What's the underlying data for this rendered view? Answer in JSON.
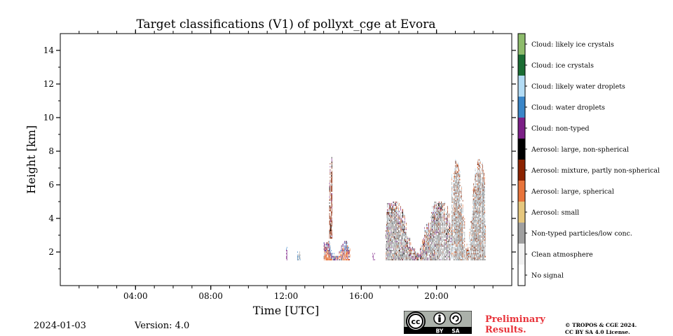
{
  "chart_data": {
    "type": "heatmap",
    "title": "Target classifications (V1) of pollyxt_cge at Evora",
    "xlabel": "Time [UTC]",
    "ylabel": "Height [km]",
    "xlim_hours": [
      0,
      24
    ],
    "ylim_km": [
      0,
      15
    ],
    "x_ticks": [
      {
        "hour": 4,
        "label": "04:00"
      },
      {
        "hour": 8,
        "label": "08:00"
      },
      {
        "hour": 12,
        "label": "12:00"
      },
      {
        "hour": 16,
        "label": "16:00"
      },
      {
        "hour": 20,
        "label": "20:00"
      }
    ],
    "y_ticks": [
      {
        "km": 2,
        "label": "2"
      },
      {
        "km": 4,
        "label": "4"
      },
      {
        "km": 6,
        "label": "6"
      },
      {
        "km": 8,
        "label": "8"
      },
      {
        "km": 10,
        "label": "10"
      },
      {
        "km": 12,
        "label": "12"
      },
      {
        "km": 14,
        "label": "14"
      }
    ],
    "classes": [
      {
        "label": "No signal",
        "color": "#ffffff"
      },
      {
        "label": "Clean atmosphere",
        "color": "#f2f2f2"
      },
      {
        "label": "Non-typed particles/low conc.",
        "color": "#a0a0a0"
      },
      {
        "label": "Aerosol: small",
        "color": "#e6c77e"
      },
      {
        "label": "Aerosol: large, spherical",
        "color": "#e8743b"
      },
      {
        "label": "Aerosol: mixture, partly non-spherical",
        "color": "#8b2200"
      },
      {
        "label": "Aerosol: large, non-spherical",
        "color": "#000000"
      },
      {
        "label": "Cloud: non-typed",
        "color": "#7b1f86"
      },
      {
        "label": "Cloud: water droplets",
        "color": "#3a86c8"
      },
      {
        "label": "Cloud: likely water droplets",
        "color": "#b3dcf5"
      },
      {
        "label": "Cloud: ice crystals",
        "color": "#1b6d33"
      },
      {
        "label": "Cloud: likely ice crystals",
        "color": "#8dbb6b"
      }
    ],
    "data_regions": [
      {
        "t_start": 12.0,
        "t_end": 12.05,
        "h_min": 1.5,
        "h_max": 2.6,
        "dominant": [
          "Cloud: non-typed",
          "Cloud: water droplets"
        ]
      },
      {
        "t_start": 12.6,
        "t_end": 12.75,
        "h_min": 1.5,
        "h_max": 2.0,
        "dominant": [
          "Cloud: water droplets",
          "Non-typed particles/low conc."
        ]
      },
      {
        "t_start": 14.0,
        "t_end": 15.4,
        "h_min": 1.5,
        "h_max": 2.6,
        "dominant": [
          "Aerosol: large, spherical",
          "Cloud: water droplets",
          "Cloud: non-typed"
        ]
      },
      {
        "t_start": 14.3,
        "t_end": 14.45,
        "h_min": 2.8,
        "h_max": 7.6,
        "dominant": [
          "Aerosol: mixture, partly non-spherical",
          "Cloud: non-typed",
          "Aerosol: large, non-spherical"
        ]
      },
      {
        "t_start": 16.6,
        "t_end": 16.7,
        "h_min": 1.5,
        "h_max": 2.1,
        "dominant": [
          "Cloud: non-typed"
        ]
      },
      {
        "t_start": 17.3,
        "t_end": 20.8,
        "h_min": 1.5,
        "h_max": 5.0,
        "dominant": [
          "Non-typed particles/low conc.",
          "Aerosol: large, spherical",
          "Aerosol: mixture, partly non-spherical",
          "Aerosol: large, non-spherical",
          "Cloud: likely water droplets",
          "Cloud: non-typed"
        ]
      },
      {
        "t_start": 20.8,
        "t_end": 22.6,
        "h_min": 1.5,
        "h_max": 7.5,
        "dominant": [
          "Non-typed particles/low conc.",
          "Aerosol: mixture, partly non-spherical",
          "Aerosol: large, spherical",
          "Cloud: likely water droplets"
        ]
      }
    ]
  },
  "footer": {
    "date": "2024-01-03",
    "version": "Version: 4.0",
    "cc_label": "cc",
    "cc_by": "BY",
    "cc_sa": "SA",
    "prelim_line1": "Preliminary",
    "prelim_line2": "Results.",
    "copyright_line1": "© TROPOS & CGE 2024.",
    "copyright_line2": "CC BY SA 4.0 License."
  }
}
